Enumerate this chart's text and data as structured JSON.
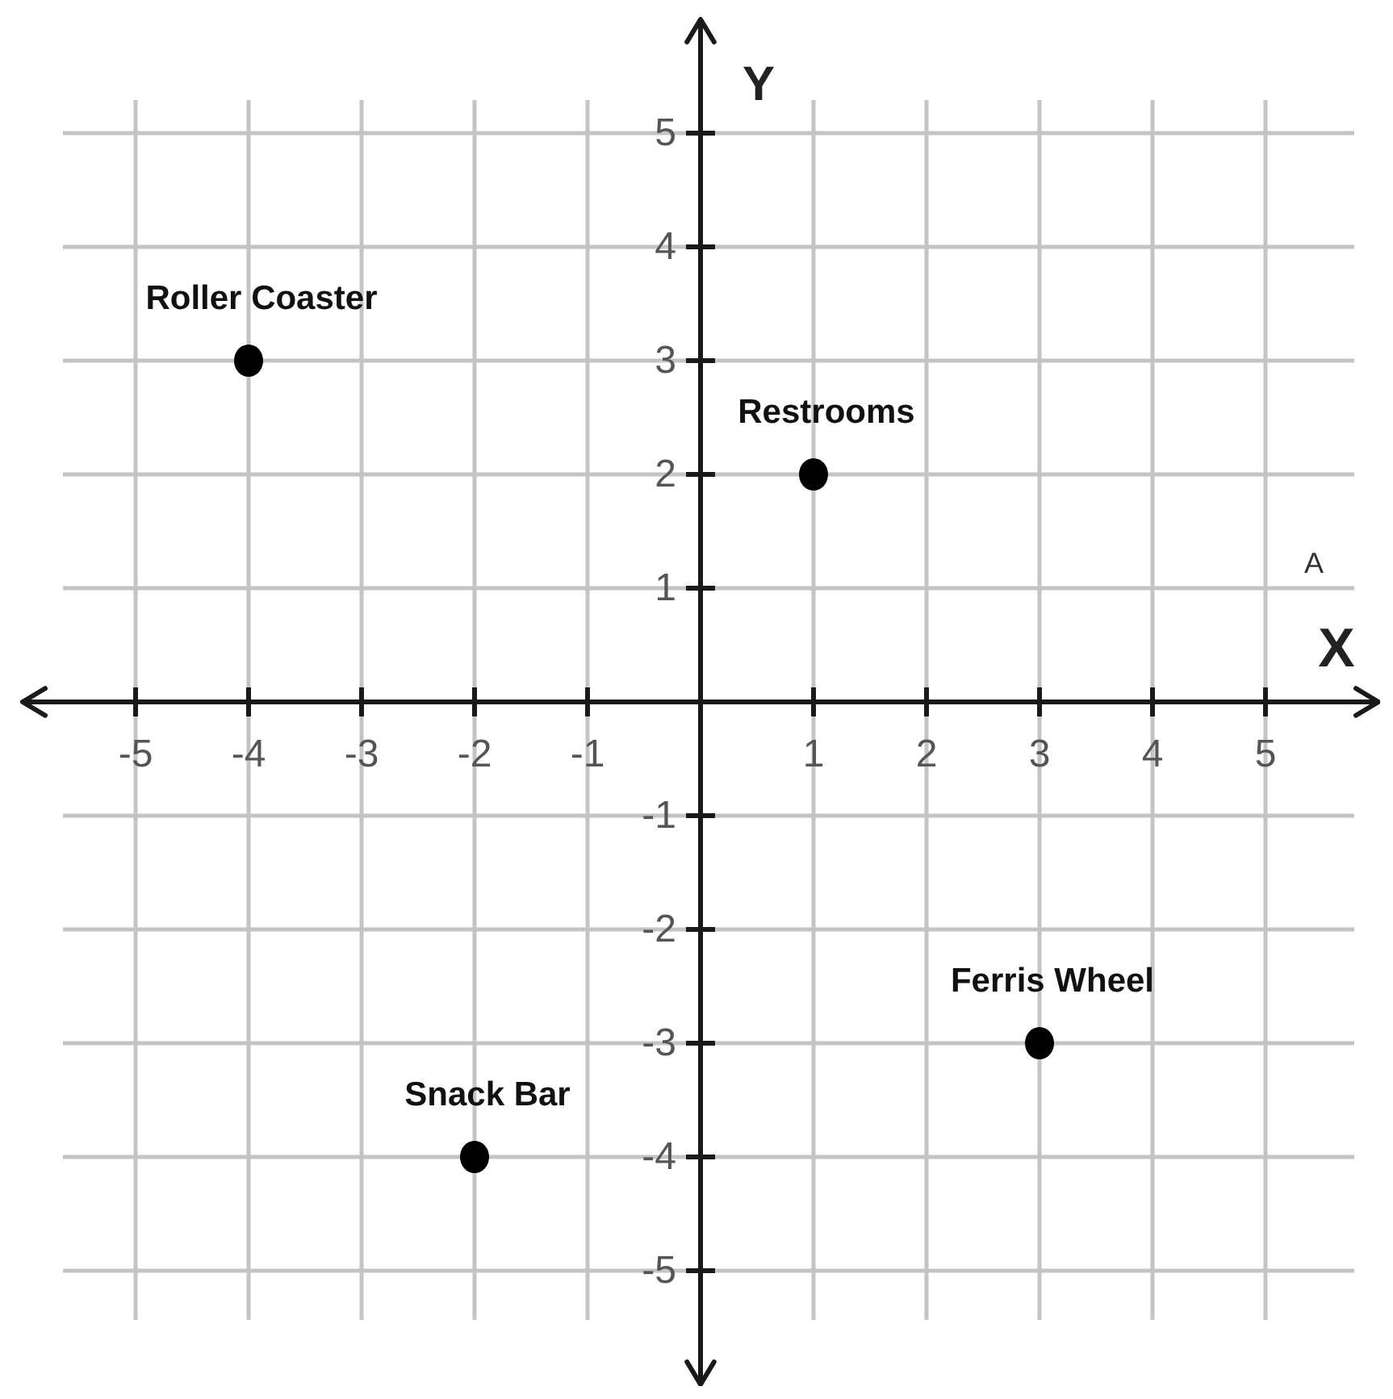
{
  "chart_data": {
    "type": "scatter",
    "xlabel": "X",
    "ylabel": "Y",
    "x": [
      -4,
      1,
      3,
      -2
    ],
    "values": [
      3,
      2,
      -3,
      -4
    ],
    "color": "#000000",
    "marker": "circle",
    "xlim": [
      -6,
      6
    ],
    "ylim": [
      -6,
      6
    ],
    "xticks": [
      -5,
      -4,
      -3,
      -2,
      -1,
      1,
      2,
      3,
      4,
      5
    ],
    "yticks": [
      -5,
      -4,
      -3,
      -2,
      -1,
      1,
      2,
      3,
      4,
      5
    ],
    "grid": true,
    "annotations": [
      {
        "text": "Roller Coaster",
        "x": -4,
        "y": 3
      },
      {
        "text": "Restrooms",
        "x": 1,
        "y": 2
      },
      {
        "text": "Ferris Wheel",
        "x": 3,
        "y": -3
      },
      {
        "text": "Snack Bar",
        "x": -2,
        "y": -4
      },
      "A"
    ]
  }
}
